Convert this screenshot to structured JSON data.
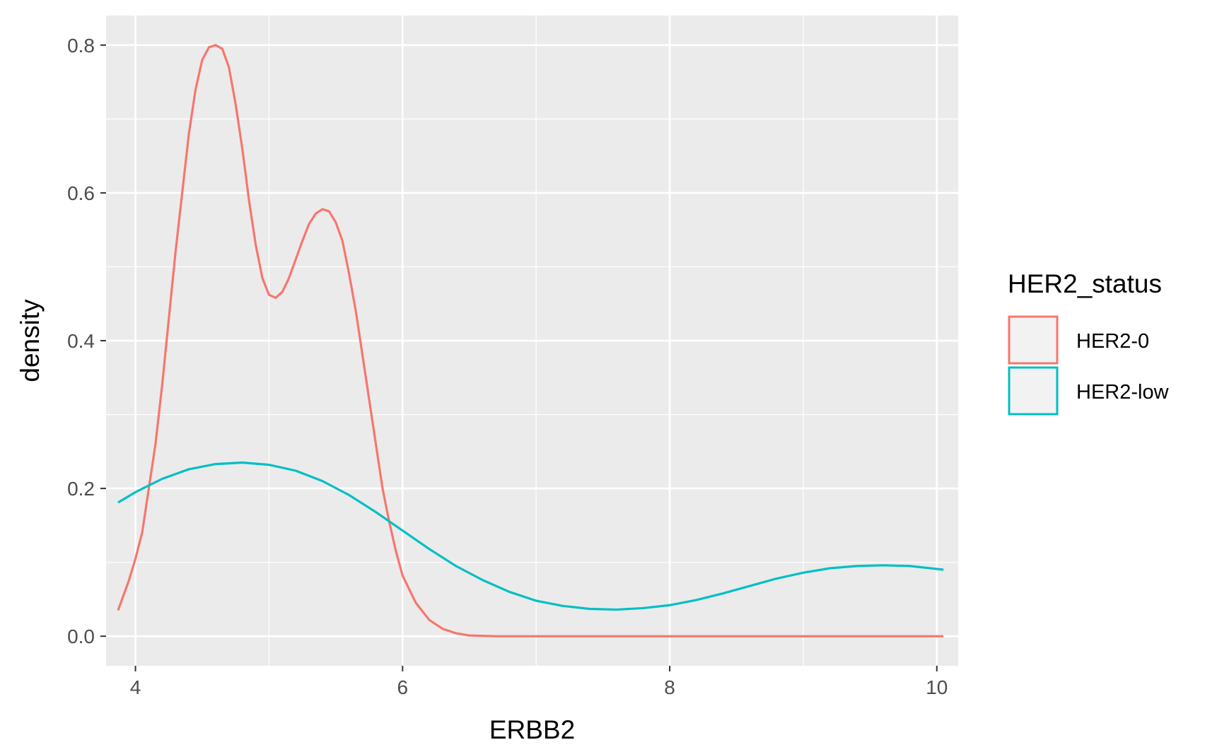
{
  "chart_data": {
    "type": "line",
    "xlabel": "ERBB2",
    "ylabel": "density",
    "xlim": [
      3.78,
      10.16
    ],
    "ylim": [
      -0.04,
      0.84
    ],
    "x_ticks": [
      4,
      6,
      8,
      10
    ],
    "x_tick_labels": [
      "4",
      "6",
      "8",
      "10"
    ],
    "y_ticks": [
      0.0,
      0.2,
      0.4,
      0.6,
      0.8
    ],
    "y_tick_labels": [
      "0.0",
      "0.2",
      "0.4",
      "0.6",
      "0.8"
    ],
    "x_minor_ticks": [
      5,
      7,
      9
    ],
    "y_minor_ticks": [
      0.1,
      0.3,
      0.5,
      0.7
    ],
    "grid": true,
    "background": "#ebebeb",
    "legend": {
      "title": "HER2_status",
      "position": "right",
      "entries": [
        "HER2-0",
        "HER2-low"
      ]
    },
    "series": [
      {
        "name": "HER2-0",
        "color": "#F8766D",
        "points": [
          [
            3.87,
            0.035
          ],
          [
            3.95,
            0.075
          ],
          [
            4.0,
            0.105
          ],
          [
            4.05,
            0.14
          ],
          [
            4.1,
            0.2
          ],
          [
            4.15,
            0.26
          ],
          [
            4.2,
            0.34
          ],
          [
            4.25,
            0.43
          ],
          [
            4.3,
            0.52
          ],
          [
            4.35,
            0.6
          ],
          [
            4.4,
            0.68
          ],
          [
            4.45,
            0.74
          ],
          [
            4.5,
            0.78
          ],
          [
            4.55,
            0.797
          ],
          [
            4.6,
            0.8
          ],
          [
            4.65,
            0.795
          ],
          [
            4.7,
            0.77
          ],
          [
            4.75,
            0.72
          ],
          [
            4.8,
            0.66
          ],
          [
            4.85,
            0.59
          ],
          [
            4.9,
            0.53
          ],
          [
            4.95,
            0.485
          ],
          [
            5.0,
            0.462
          ],
          [
            5.05,
            0.458
          ],
          [
            5.1,
            0.466
          ],
          [
            5.15,
            0.485
          ],
          [
            5.2,
            0.51
          ],
          [
            5.25,
            0.535
          ],
          [
            5.3,
            0.558
          ],
          [
            5.35,
            0.572
          ],
          [
            5.4,
            0.578
          ],
          [
            5.45,
            0.575
          ],
          [
            5.5,
            0.56
          ],
          [
            5.55,
            0.535
          ],
          [
            5.6,
            0.49
          ],
          [
            5.65,
            0.44
          ],
          [
            5.7,
            0.38
          ],
          [
            5.75,
            0.32
          ],
          [
            5.8,
            0.26
          ],
          [
            5.85,
            0.2
          ],
          [
            5.9,
            0.155
          ],
          [
            5.95,
            0.115
          ],
          [
            6.0,
            0.082
          ],
          [
            6.1,
            0.045
          ],
          [
            6.2,
            0.022
          ],
          [
            6.3,
            0.01
          ],
          [
            6.4,
            0.004
          ],
          [
            6.5,
            0.001
          ],
          [
            6.7,
            0.0
          ],
          [
            8.0,
            0.0
          ],
          [
            10.05,
            0.0
          ]
        ]
      },
      {
        "name": "HER2-low",
        "color": "#00BFC4",
        "points": [
          [
            3.87,
            0.181
          ],
          [
            4.0,
            0.195
          ],
          [
            4.2,
            0.213
          ],
          [
            4.4,
            0.226
          ],
          [
            4.6,
            0.233
          ],
          [
            4.8,
            0.235
          ],
          [
            5.0,
            0.232
          ],
          [
            5.2,
            0.224
          ],
          [
            5.4,
            0.21
          ],
          [
            5.6,
            0.191
          ],
          [
            5.8,
            0.168
          ],
          [
            6.0,
            0.143
          ],
          [
            6.2,
            0.118
          ],
          [
            6.4,
            0.095
          ],
          [
            6.6,
            0.076
          ],
          [
            6.8,
            0.06
          ],
          [
            7.0,
            0.048
          ],
          [
            7.2,
            0.041
          ],
          [
            7.4,
            0.037
          ],
          [
            7.6,
            0.036
          ],
          [
            7.8,
            0.038
          ],
          [
            8.0,
            0.042
          ],
          [
            8.2,
            0.049
          ],
          [
            8.4,
            0.058
          ],
          [
            8.6,
            0.068
          ],
          [
            8.8,
            0.078
          ],
          [
            9.0,
            0.086
          ],
          [
            9.2,
            0.092
          ],
          [
            9.4,
            0.095
          ],
          [
            9.6,
            0.096
          ],
          [
            9.8,
            0.095
          ],
          [
            10.05,
            0.09
          ]
        ]
      }
    ]
  }
}
